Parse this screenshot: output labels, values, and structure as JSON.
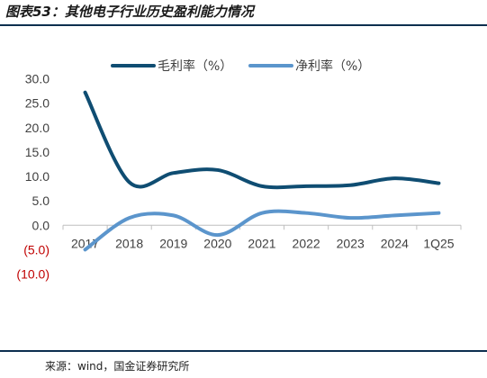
{
  "title": "图表53：其他电子行业历史盈利能力情况",
  "source": "来源：wind，国金证券研究所",
  "colors": {
    "gross": "#0f4d72",
    "net": "#5b95cc",
    "negative": "#c00000",
    "rule": "#0c2f4f"
  },
  "chart_data": {
    "type": "line",
    "categories": [
      "2017",
      "2018",
      "2019",
      "2020",
      "2021",
      "2022",
      "2023",
      "2024",
      "1Q25"
    ],
    "series": [
      {
        "name": "毛利率（%）",
        "values": [
          27.2,
          8.8,
          10.7,
          11.3,
          8.0,
          8.0,
          8.2,
          9.6,
          8.6
        ]
      },
      {
        "name": "净利率（%）",
        "values": [
          -5.0,
          1.5,
          2.0,
          -2.0,
          2.5,
          2.5,
          1.5,
          2.0,
          2.5
        ]
      }
    ],
    "ylim": [
      -10,
      30
    ],
    "yticks": [
      {
        "value": 30,
        "label": "30.0"
      },
      {
        "value": 25,
        "label": "25.0"
      },
      {
        "value": 20,
        "label": "20.0"
      },
      {
        "value": 15,
        "label": "15.0"
      },
      {
        "value": 10,
        "label": "10.0"
      },
      {
        "value": 5,
        "label": "5.0"
      },
      {
        "value": 0,
        "label": "0.0"
      },
      {
        "value": -5,
        "label": "(5.0)"
      },
      {
        "value": -10,
        "label": "(10.0)"
      }
    ],
    "xlabel": "",
    "ylabel": "",
    "grid": false,
    "legend": "top"
  }
}
